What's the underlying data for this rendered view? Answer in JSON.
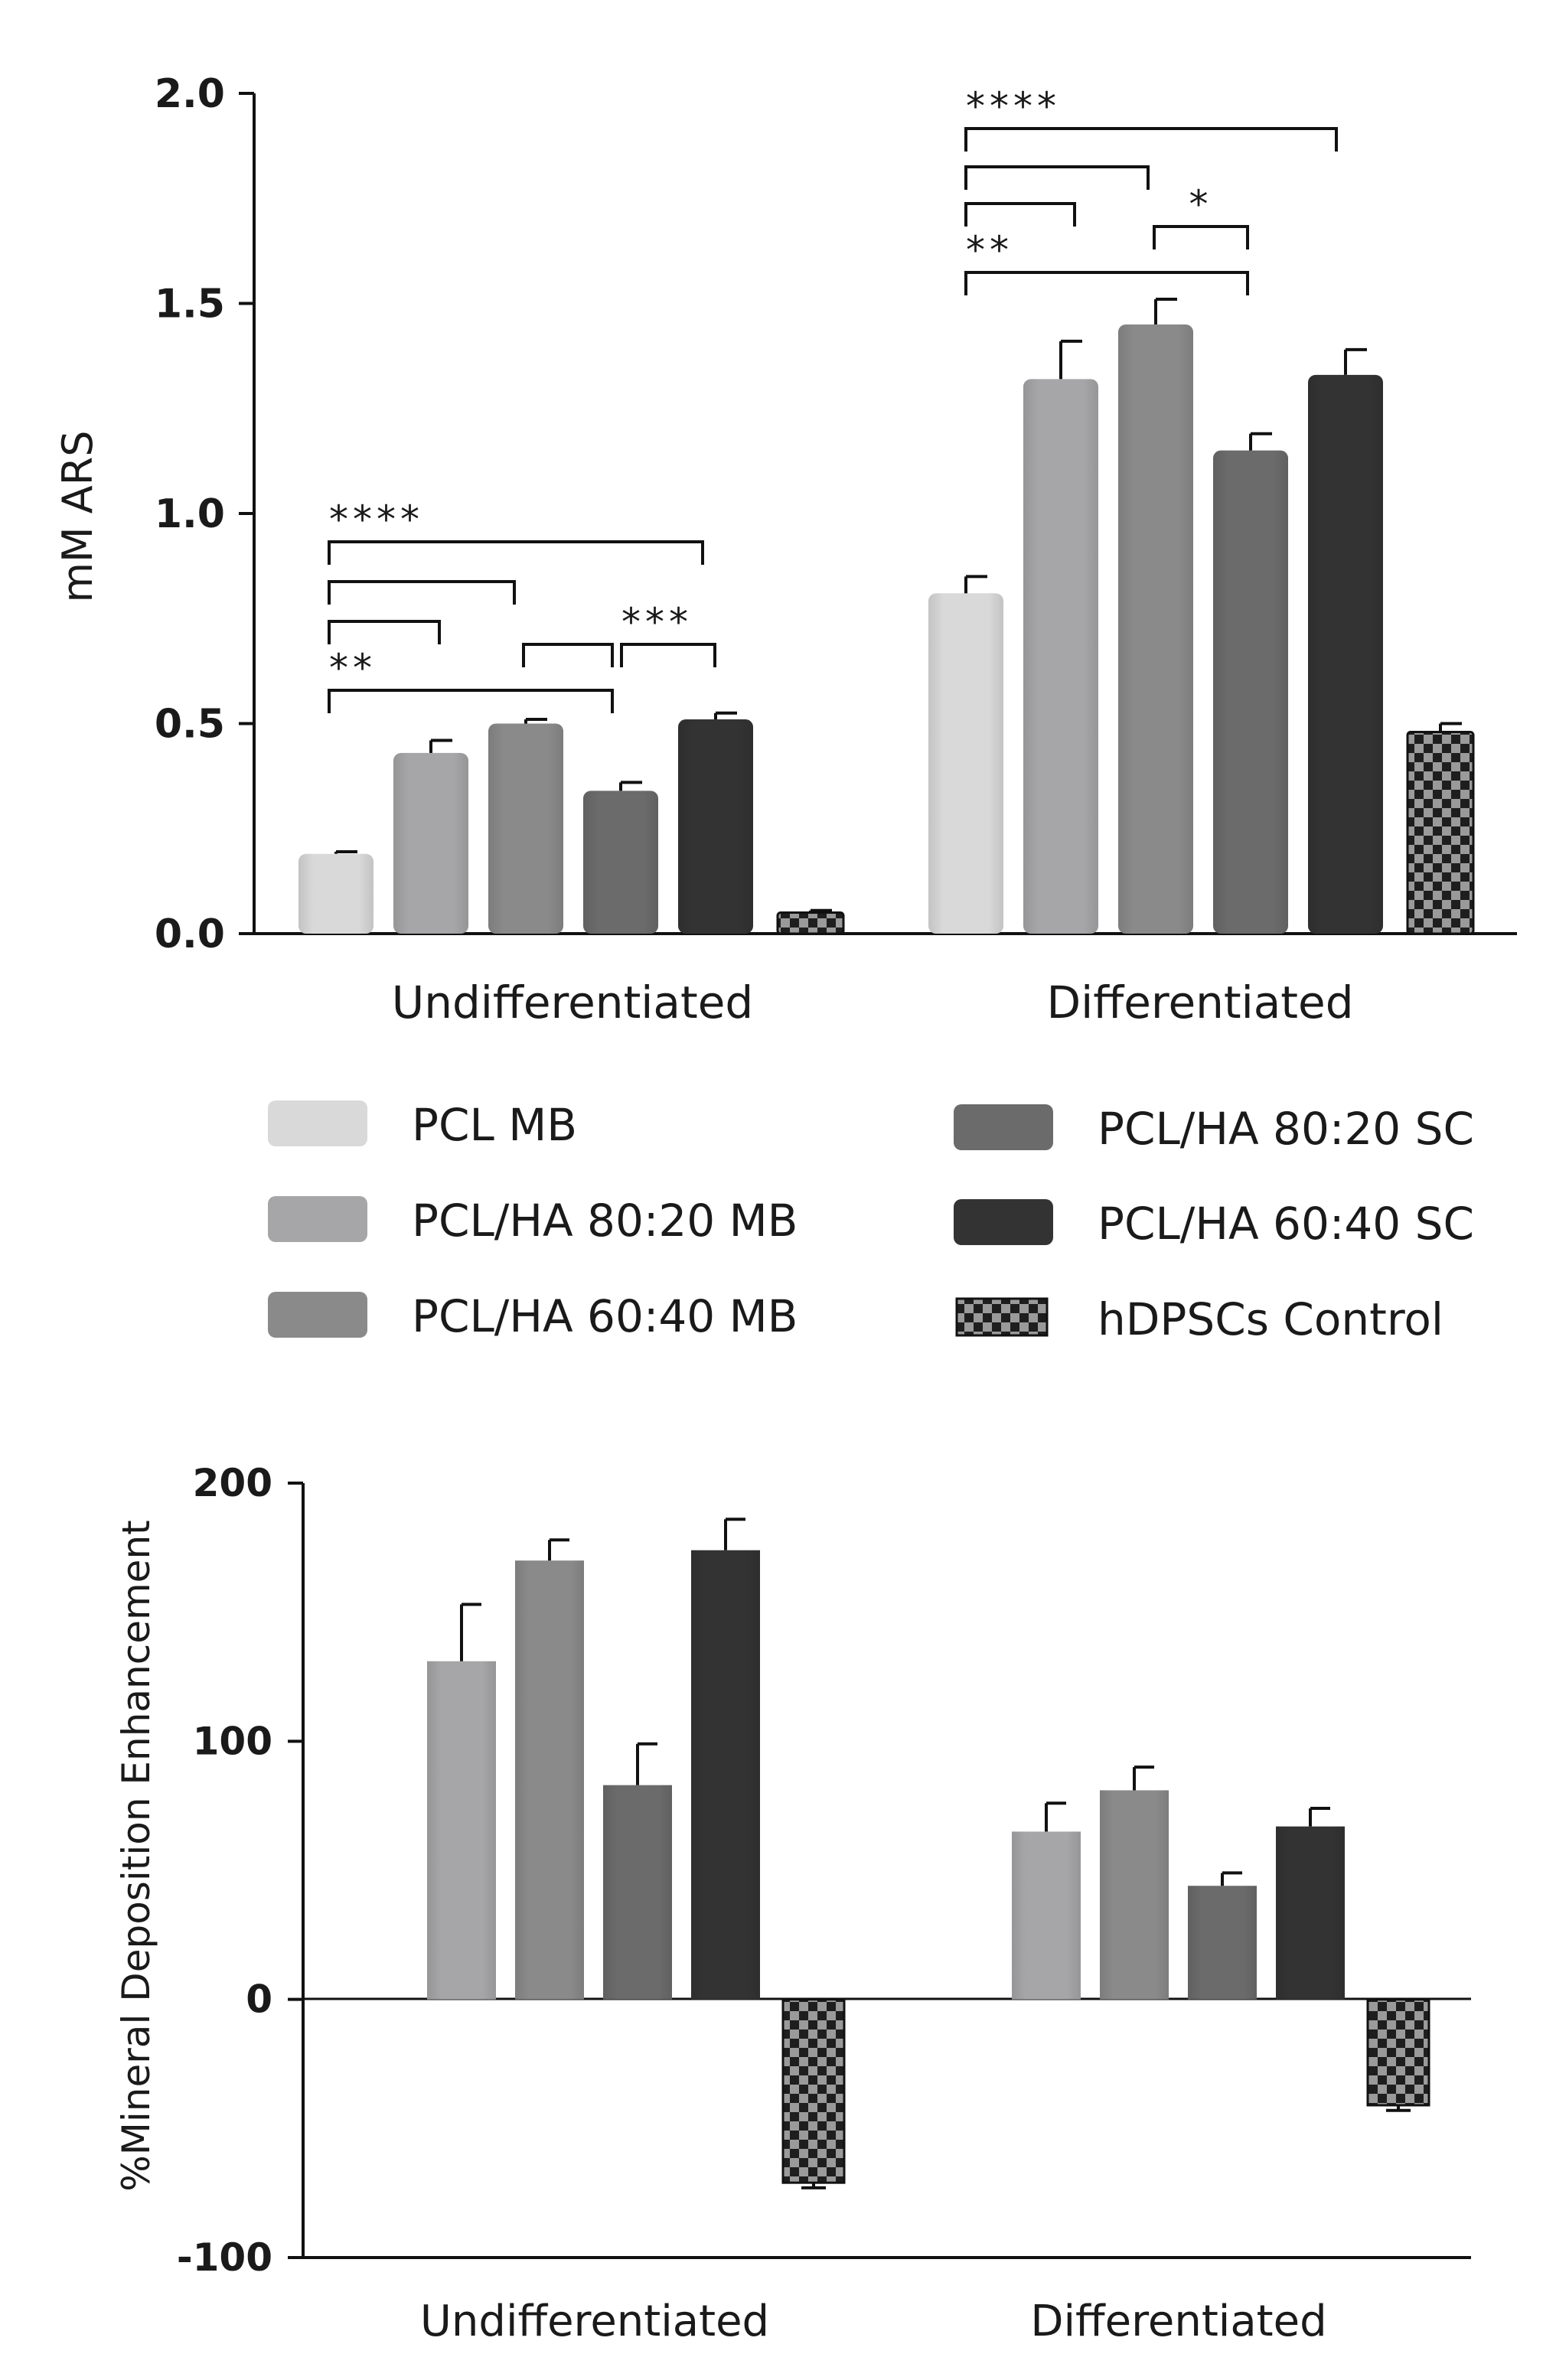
{
  "series_legend": [
    {
      "name": "PCL MB",
      "color": "#d9d9d9",
      "pattern": false
    },
    {
      "name": "PCL/HA 80:20 MB",
      "color": "#a6a6a8",
      "pattern": false
    },
    {
      "name": "PCL/HA 60:40 MB",
      "color": "#8a8a8a",
      "pattern": false
    },
    {
      "name": "PCL/HA 80:20 SC",
      "color": "#6b6b6b",
      "pattern": false
    },
    {
      "name": "PCL/HA 60:40 SC",
      "color": "#333333",
      "pattern": false
    },
    {
      "name": "hDPSCs Control",
      "color": "#333333",
      "pattern": true
    }
  ],
  "chart_data": [
    {
      "type": "bar",
      "title": "",
      "xlabel": "",
      "ylabel": "mM ARS",
      "ylim": [
        0,
        2.0
      ],
      "yticks": [
        0.0,
        0.5,
        1.0,
        1.5,
        2.0
      ],
      "ytick_labels": [
        "0.0",
        "0.5",
        "1.0",
        "1.5",
        "2.0"
      ],
      "categories": [
        "Undifferentiated",
        "Differentiated"
      ],
      "series": [
        {
          "name": "PCL MB",
          "values": [
            0.19,
            0.81
          ],
          "errors": [
            0.005,
            0.04
          ]
        },
        {
          "name": "PCL/HA 80:20 MB",
          "values": [
            0.43,
            1.32
          ],
          "errors": [
            0.03,
            0.09
          ]
        },
        {
          "name": "PCL/HA 60:40 MB",
          "values": [
            0.5,
            1.45
          ],
          "errors": [
            0.01,
            0.06
          ]
        },
        {
          "name": "PCL/HA 80:20 SC",
          "values": [
            0.34,
            1.15
          ],
          "errors": [
            0.02,
            0.04
          ]
        },
        {
          "name": "PCL/HA 60:40 SC",
          "values": [
            0.51,
            1.33
          ],
          "errors": [
            0.015,
            0.06
          ]
        },
        {
          "name": "hDPSCs Control",
          "values": [
            0.05,
            0.48
          ],
          "errors": [
            0.005,
            0.02
          ]
        }
      ],
      "significance": [
        {
          "group": 0,
          "from": 0,
          "to": 4,
          "label": "****"
        },
        {
          "group": 0,
          "from": 0,
          "to": 2,
          "label": ""
        },
        {
          "group": 0,
          "from": 0,
          "to": 1,
          "label": ""
        },
        {
          "group": 0,
          "from": 2,
          "to": 3,
          "label": ""
        },
        {
          "group": 0,
          "from": 3,
          "to": 4,
          "label": "***"
        },
        {
          "group": 0,
          "from": 0,
          "to": 3,
          "label": "**"
        },
        {
          "group": 1,
          "from": 0,
          "to": 4,
          "label": "****"
        },
        {
          "group": 1,
          "from": 0,
          "to": 2,
          "label": ""
        },
        {
          "group": 1,
          "from": 0,
          "to": 1,
          "label": ""
        },
        {
          "group": 1,
          "from": 2,
          "to": 3,
          "label": "*"
        },
        {
          "group": 1,
          "from": 0,
          "to": 3,
          "label": "**"
        }
      ]
    },
    {
      "type": "bar",
      "title": "",
      "xlabel": "",
      "ylabel": "%Mineral Deposition Enhancement",
      "ylim": [
        -100,
        200
      ],
      "yticks": [
        -100,
        0,
        100,
        200
      ],
      "ytick_labels": [
        "-100",
        "0",
        "100",
        "200"
      ],
      "categories": [
        "Undifferentiated",
        "Differentiated"
      ],
      "series": [
        {
          "name": "PCL/HA 80:20 MB",
          "values": [
            131,
            65
          ],
          "errors": [
            22,
            11
          ]
        },
        {
          "name": "PCL/HA 60:40 MB",
          "values": [
            170,
            81
          ],
          "errors": [
            8,
            9
          ]
        },
        {
          "name": "PCL/HA 80:20 SC",
          "values": [
            83,
            44
          ],
          "errors": [
            16,
            5
          ]
        },
        {
          "name": "PCL/HA 60:40 SC",
          "values": [
            174,
            67
          ],
          "errors": [
            12,
            7
          ]
        },
        {
          "name": "hDPSCs Control",
          "values": [
            -71,
            -41
          ],
          "errors": [
            2,
            2
          ]
        }
      ]
    }
  ]
}
